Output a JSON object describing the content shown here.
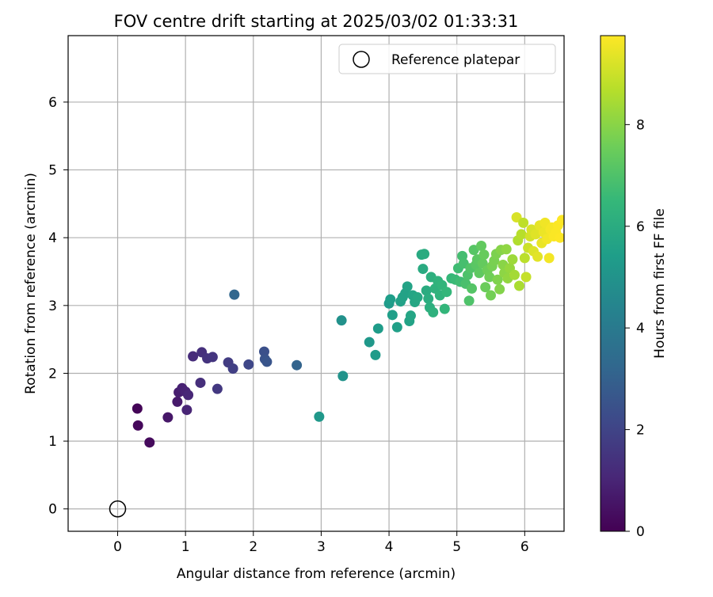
{
  "chart_data": {
    "type": "scatter",
    "title": "FOV centre drift starting at 2025/03/02 01:33:31",
    "xlabel": "Angular distance from reference (arcmin)",
    "ylabel": "Rotation from reference (arcmin)",
    "xlim": [
      -0.73,
      6.58
    ],
    "ylim": [
      -0.33,
      6.98
    ],
    "xticks": [
      0,
      1,
      2,
      3,
      4,
      5,
      6
    ],
    "yticks": [
      0,
      1,
      2,
      3,
      4,
      5,
      6
    ],
    "grid": true,
    "legend": {
      "placement": "top-right",
      "entries": [
        "Reference platepar"
      ]
    },
    "reference_point": {
      "x": 0,
      "y": 0
    },
    "colorbar": {
      "label": "Hours from first FF file",
      "colormap": "viridis",
      "range": [
        0,
        9.75
      ],
      "ticks": [
        0,
        2,
        4,
        6,
        8
      ]
    },
    "colormap_stops": [
      "#440154",
      "#482878",
      "#3e4989",
      "#31688e",
      "#26828e",
      "#1f9e89",
      "#35b779",
      "#6ece58",
      "#b5de2b",
      "#fde725"
    ],
    "points": [
      {
        "x": 0.29,
        "y": 1.48,
        "c": 0.1
      },
      {
        "x": 0.3,
        "y": 1.23,
        "c": 0.2
      },
      {
        "x": 0.47,
        "y": 0.98,
        "c": 0.25
      },
      {
        "x": 0.74,
        "y": 1.35,
        "c": 0.6
      },
      {
        "x": 0.88,
        "y": 1.58,
        "c": 0.7
      },
      {
        "x": 0.9,
        "y": 1.72,
        "c": 0.8
      },
      {
        "x": 0.95,
        "y": 1.78,
        "c": 0.9
      },
      {
        "x": 1.0,
        "y": 1.73,
        "c": 0.95
      },
      {
        "x": 1.02,
        "y": 1.46,
        "c": 1.0
      },
      {
        "x": 1.04,
        "y": 1.68,
        "c": 1.05
      },
      {
        "x": 1.11,
        "y": 2.25,
        "c": 1.2
      },
      {
        "x": 1.22,
        "y": 1.86,
        "c": 1.3
      },
      {
        "x": 1.24,
        "y": 2.31,
        "c": 1.35
      },
      {
        "x": 1.32,
        "y": 2.22,
        "c": 1.45
      },
      {
        "x": 1.4,
        "y": 2.24,
        "c": 1.5
      },
      {
        "x": 1.47,
        "y": 1.77,
        "c": 1.6
      },
      {
        "x": 1.63,
        "y": 2.16,
        "c": 1.75
      },
      {
        "x": 1.7,
        "y": 2.07,
        "c": 1.85
      },
      {
        "x": 1.72,
        "y": 3.16,
        "c": 3.2
      },
      {
        "x": 1.93,
        "y": 2.13,
        "c": 2.1
      },
      {
        "x": 2.16,
        "y": 2.32,
        "c": 2.4
      },
      {
        "x": 2.17,
        "y": 2.21,
        "c": 2.5
      },
      {
        "x": 2.2,
        "y": 2.17,
        "c": 2.6
      },
      {
        "x": 2.64,
        "y": 2.12,
        "c": 3.1
      },
      {
        "x": 2.97,
        "y": 1.36,
        "c": 5.2
      },
      {
        "x": 3.3,
        "y": 2.78,
        "c": 4.9
      },
      {
        "x": 3.32,
        "y": 1.96,
        "c": 5.0
      },
      {
        "x": 3.71,
        "y": 2.46,
        "c": 5.2
      },
      {
        "x": 3.8,
        "y": 2.27,
        "c": 5.3
      },
      {
        "x": 3.84,
        "y": 2.66,
        "c": 5.35
      },
      {
        "x": 4.0,
        "y": 3.03,
        "c": 5.3
      },
      {
        "x": 4.02,
        "y": 3.09,
        "c": 5.4
      },
      {
        "x": 4.05,
        "y": 2.86,
        "c": 5.45
      },
      {
        "x": 4.12,
        "y": 2.68,
        "c": 5.5
      },
      {
        "x": 4.17,
        "y": 3.06,
        "c": 5.55
      },
      {
        "x": 4.2,
        "y": 3.12,
        "c": 5.6
      },
      {
        "x": 4.24,
        "y": 3.18,
        "c": 5.6
      },
      {
        "x": 4.27,
        "y": 3.28,
        "c": 5.65
      },
      {
        "x": 4.3,
        "y": 2.77,
        "c": 5.6
      },
      {
        "x": 4.32,
        "y": 2.85,
        "c": 5.7
      },
      {
        "x": 4.35,
        "y": 3.15,
        "c": 5.7
      },
      {
        "x": 4.38,
        "y": 3.05,
        "c": 5.75
      },
      {
        "x": 4.42,
        "y": 3.12,
        "c": 5.8
      },
      {
        "x": 4.48,
        "y": 3.75,
        "c": 5.9
      },
      {
        "x": 4.5,
        "y": 3.54,
        "c": 5.95
      },
      {
        "x": 4.52,
        "y": 3.76,
        "c": 6.0
      },
      {
        "x": 4.55,
        "y": 3.22,
        "c": 6.0
      },
      {
        "x": 4.58,
        "y": 3.1,
        "c": 6.05
      },
      {
        "x": 4.6,
        "y": 2.97,
        "c": 6.1
      },
      {
        "x": 4.62,
        "y": 3.42,
        "c": 6.15
      },
      {
        "x": 4.65,
        "y": 2.9,
        "c": 6.2
      },
      {
        "x": 4.68,
        "y": 3.25,
        "c": 6.25
      },
      {
        "x": 4.72,
        "y": 3.36,
        "c": 6.3
      },
      {
        "x": 4.75,
        "y": 3.15,
        "c": 6.3
      },
      {
        "x": 4.78,
        "y": 3.3,
        "c": 6.35
      },
      {
        "x": 4.82,
        "y": 2.95,
        "c": 6.4
      },
      {
        "x": 4.85,
        "y": 3.2,
        "c": 6.45
      },
      {
        "x": 4.92,
        "y": 3.4,
        "c": 6.5
      },
      {
        "x": 4.98,
        "y": 3.38,
        "c": 6.6
      },
      {
        "x": 5.02,
        "y": 3.55,
        "c": 6.7
      },
      {
        "x": 5.05,
        "y": 3.35,
        "c": 6.7
      },
      {
        "x": 5.08,
        "y": 3.73,
        "c": 6.8
      },
      {
        "x": 5.1,
        "y": 3.62,
        "c": 6.85
      },
      {
        "x": 5.13,
        "y": 3.32,
        "c": 6.9
      },
      {
        "x": 5.16,
        "y": 3.45,
        "c": 6.95
      },
      {
        "x": 5.18,
        "y": 3.07,
        "c": 7.0
      },
      {
        "x": 5.2,
        "y": 3.55,
        "c": 7.05
      },
      {
        "x": 5.22,
        "y": 3.25,
        "c": 7.1
      },
      {
        "x": 5.25,
        "y": 3.82,
        "c": 7.15
      },
      {
        "x": 5.28,
        "y": 3.6,
        "c": 7.2
      },
      {
        "x": 5.3,
        "y": 3.68,
        "c": 7.25
      },
      {
        "x": 5.33,
        "y": 3.48,
        "c": 7.3
      },
      {
        "x": 5.36,
        "y": 3.88,
        "c": 7.35
      },
      {
        "x": 5.38,
        "y": 3.62,
        "c": 7.4
      },
      {
        "x": 5.4,
        "y": 3.75,
        "c": 7.45
      },
      {
        "x": 5.42,
        "y": 3.27,
        "c": 7.5
      },
      {
        "x": 5.45,
        "y": 3.52,
        "c": 7.55
      },
      {
        "x": 5.48,
        "y": 3.42,
        "c": 7.6
      },
      {
        "x": 5.5,
        "y": 3.15,
        "c": 7.65
      },
      {
        "x": 5.52,
        "y": 3.58,
        "c": 7.7
      },
      {
        "x": 5.55,
        "y": 3.66,
        "c": 7.75
      },
      {
        "x": 5.58,
        "y": 3.76,
        "c": 7.8
      },
      {
        "x": 5.6,
        "y": 3.38,
        "c": 7.85
      },
      {
        "x": 5.63,
        "y": 3.24,
        "c": 7.9
      },
      {
        "x": 5.65,
        "y": 3.82,
        "c": 7.95
      },
      {
        "x": 5.68,
        "y": 3.6,
        "c": 8.0
      },
      {
        "x": 5.7,
        "y": 3.48,
        "c": 8.05
      },
      {
        "x": 5.73,
        "y": 3.83,
        "c": 8.1
      },
      {
        "x": 5.75,
        "y": 3.4,
        "c": 8.15
      },
      {
        "x": 5.78,
        "y": 3.55,
        "c": 8.2
      },
      {
        "x": 5.82,
        "y": 3.68,
        "c": 8.3
      },
      {
        "x": 5.85,
        "y": 3.45,
        "c": 8.4
      },
      {
        "x": 5.88,
        "y": 4.3,
        "c": 9.2
      },
      {
        "x": 5.9,
        "y": 3.96,
        "c": 8.6
      },
      {
        "x": 5.92,
        "y": 3.29,
        "c": 8.5
      },
      {
        "x": 5.95,
        "y": 4.05,
        "c": 8.7
      },
      {
        "x": 5.98,
        "y": 4.22,
        "c": 8.8
      },
      {
        "x": 6.0,
        "y": 3.7,
        "c": 8.75
      },
      {
        "x": 6.02,
        "y": 3.42,
        "c": 8.9
      },
      {
        "x": 6.05,
        "y": 3.85,
        "c": 9.0
      },
      {
        "x": 6.08,
        "y": 4.02,
        "c": 9.1
      },
      {
        "x": 6.1,
        "y": 4.12,
        "c": 9.2
      },
      {
        "x": 6.13,
        "y": 3.8,
        "c": 9.25
      },
      {
        "x": 6.16,
        "y": 4.05,
        "c": 9.3
      },
      {
        "x": 6.19,
        "y": 3.72,
        "c": 9.35
      },
      {
        "x": 6.22,
        "y": 4.18,
        "c": 9.4
      },
      {
        "x": 6.25,
        "y": 3.92,
        "c": 9.45
      },
      {
        "x": 6.28,
        "y": 4.08,
        "c": 9.5
      },
      {
        "x": 6.3,
        "y": 4.22,
        "c": 9.55
      },
      {
        "x": 6.33,
        "y": 3.98,
        "c": 9.6
      },
      {
        "x": 6.36,
        "y": 3.7,
        "c": 9.6
      },
      {
        "x": 6.38,
        "y": 4.12,
        "c": 9.65
      },
      {
        "x": 6.4,
        "y": 4.15,
        "c": 9.65
      },
      {
        "x": 6.43,
        "y": 4.02,
        "c": 9.7
      },
      {
        "x": 6.46,
        "y": 4.08,
        "c": 9.7
      },
      {
        "x": 6.49,
        "y": 4.18,
        "c": 9.72
      },
      {
        "x": 6.52,
        "y": 4.0,
        "c": 9.75
      },
      {
        "x": 6.55,
        "y": 4.26,
        "c": 9.75
      }
    ]
  }
}
